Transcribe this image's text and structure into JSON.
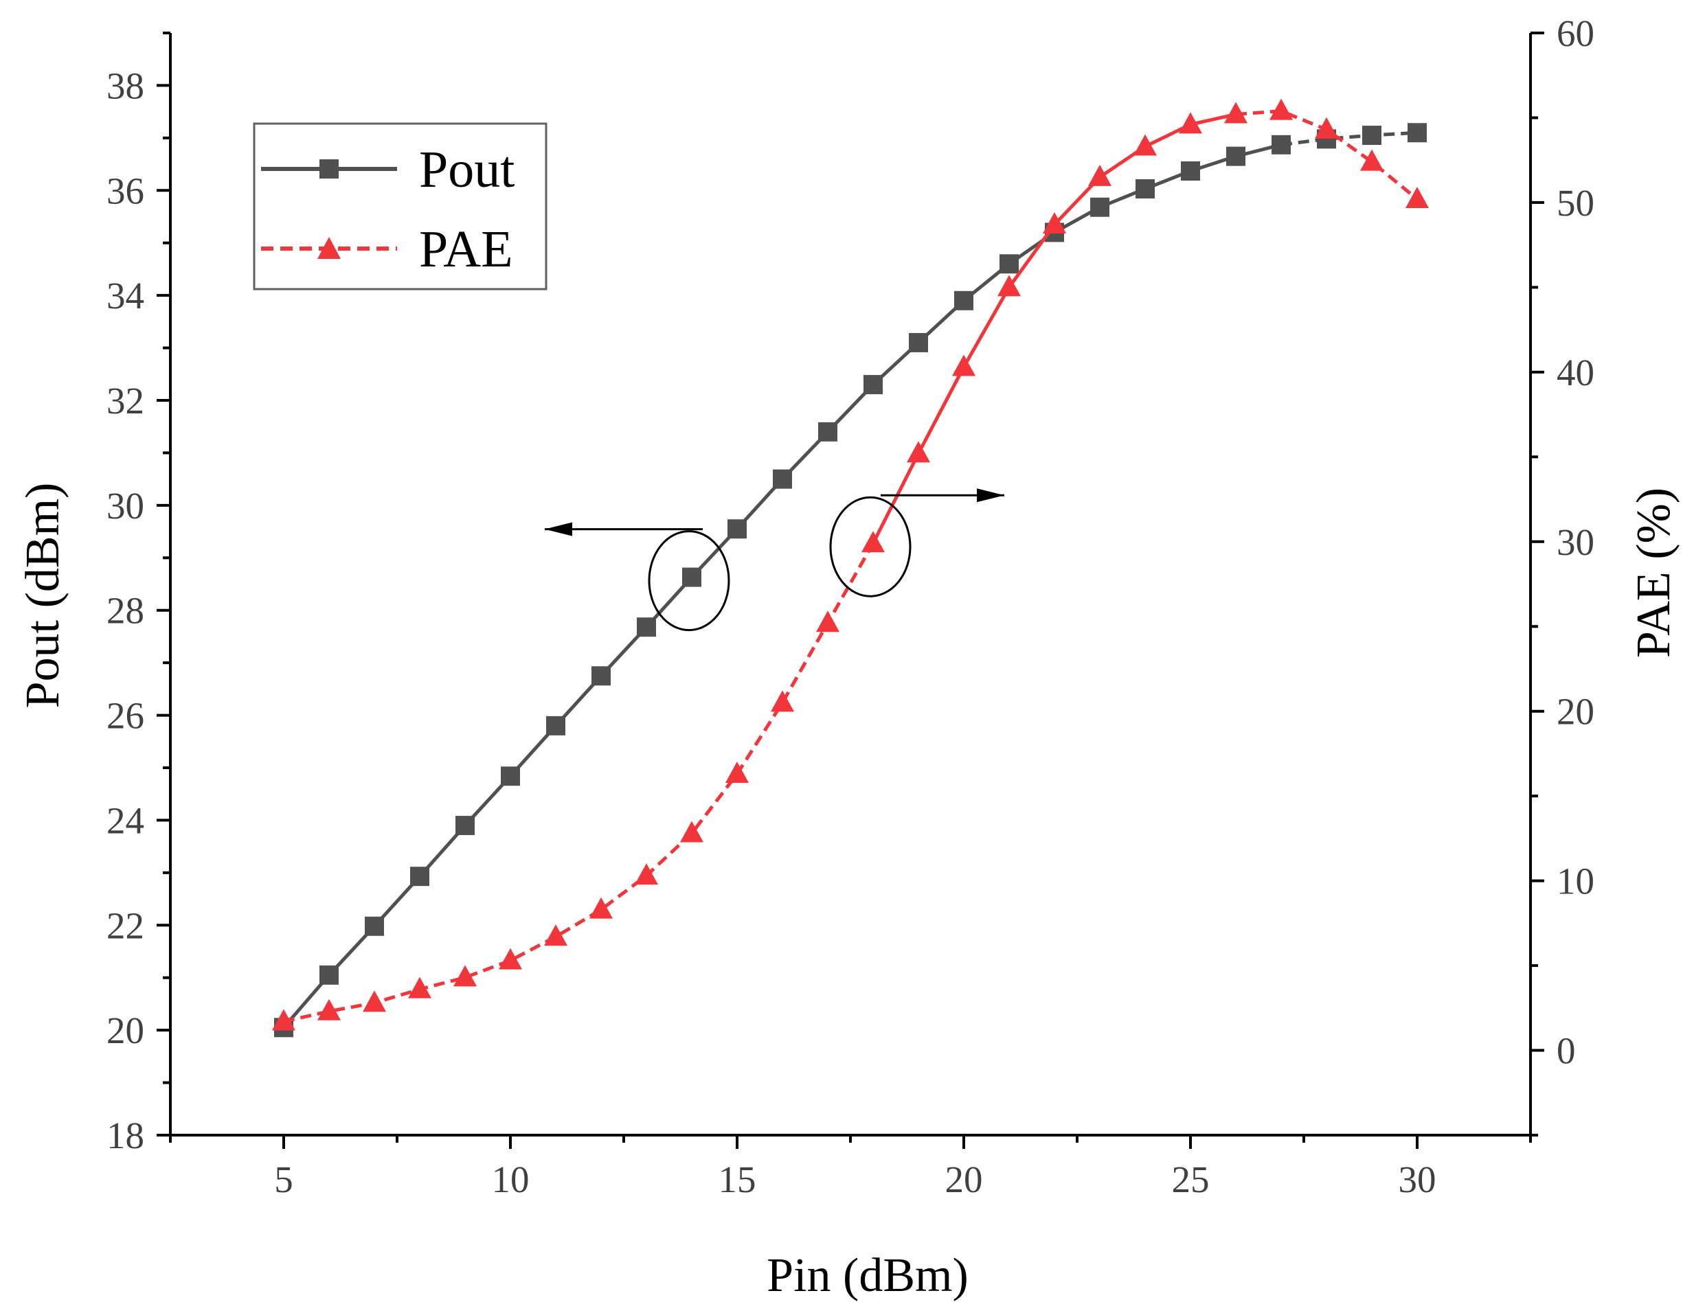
{
  "chart_data": {
    "type": "line",
    "x": [
      5,
      6,
      7,
      8,
      9,
      10,
      11,
      12,
      13,
      14,
      15,
      16,
      17,
      18,
      19,
      20,
      21,
      22,
      23,
      24,
      25,
      26,
      27,
      28,
      29,
      30
    ],
    "series": [
      {
        "name": "Pout",
        "axis": "left",
        "color": "#505050",
        "marker": "square",
        "values": [
          20.05,
          21.05,
          21.98,
          22.93,
          23.9,
          24.84,
          25.8,
          26.75,
          27.68,
          28.63,
          29.55,
          30.5,
          31.4,
          32.3,
          33.1,
          33.9,
          34.6,
          35.2,
          35.68,
          36.03,
          36.37,
          36.65,
          36.87,
          36.98,
          37.05,
          37.1
        ]
      },
      {
        "name": "PAE",
        "axis": "right",
        "color": "#f2353a",
        "marker": "triangle",
        "values": [
          1.7,
          2.3,
          2.8,
          3.6,
          4.3,
          5.3,
          6.7,
          8.3,
          10.3,
          12.8,
          16.3,
          20.5,
          25.2,
          29.9,
          35.2,
          40.3,
          45.0,
          48.7,
          51.5,
          53.3,
          54.6,
          55.2,
          55.4,
          54.3,
          52.4,
          50.2
        ]
      }
    ],
    "xlabel": "Pin (dBm)",
    "ylabel": "Pout (dBm)",
    "y2label": "PAE (%)",
    "xlim": [
      2.5,
      32.5
    ],
    "ylim": [
      18,
      39
    ],
    "y2lim": [
      -5,
      60
    ],
    "xticks": [
      "5",
      "10",
      "15",
      "20",
      "25",
      "30"
    ],
    "yticks": [
      "18",
      "20",
      "22",
      "24",
      "26",
      "28",
      "30",
      "32",
      "34",
      "36",
      "38"
    ],
    "y2ticks": [
      "0",
      "10",
      "20",
      "30",
      "40",
      "50",
      "60"
    ],
    "legend": {
      "position": "top-left",
      "entries": [
        "Pout",
        "PAE"
      ]
    },
    "annotations": [
      {
        "type": "circle-arrow",
        "target": "Pout",
        "direction": "left",
        "at_x": 14
      },
      {
        "type": "circle-arrow",
        "target": "PAE",
        "direction": "right",
        "at_x": 18
      }
    ],
    "grid": false
  }
}
